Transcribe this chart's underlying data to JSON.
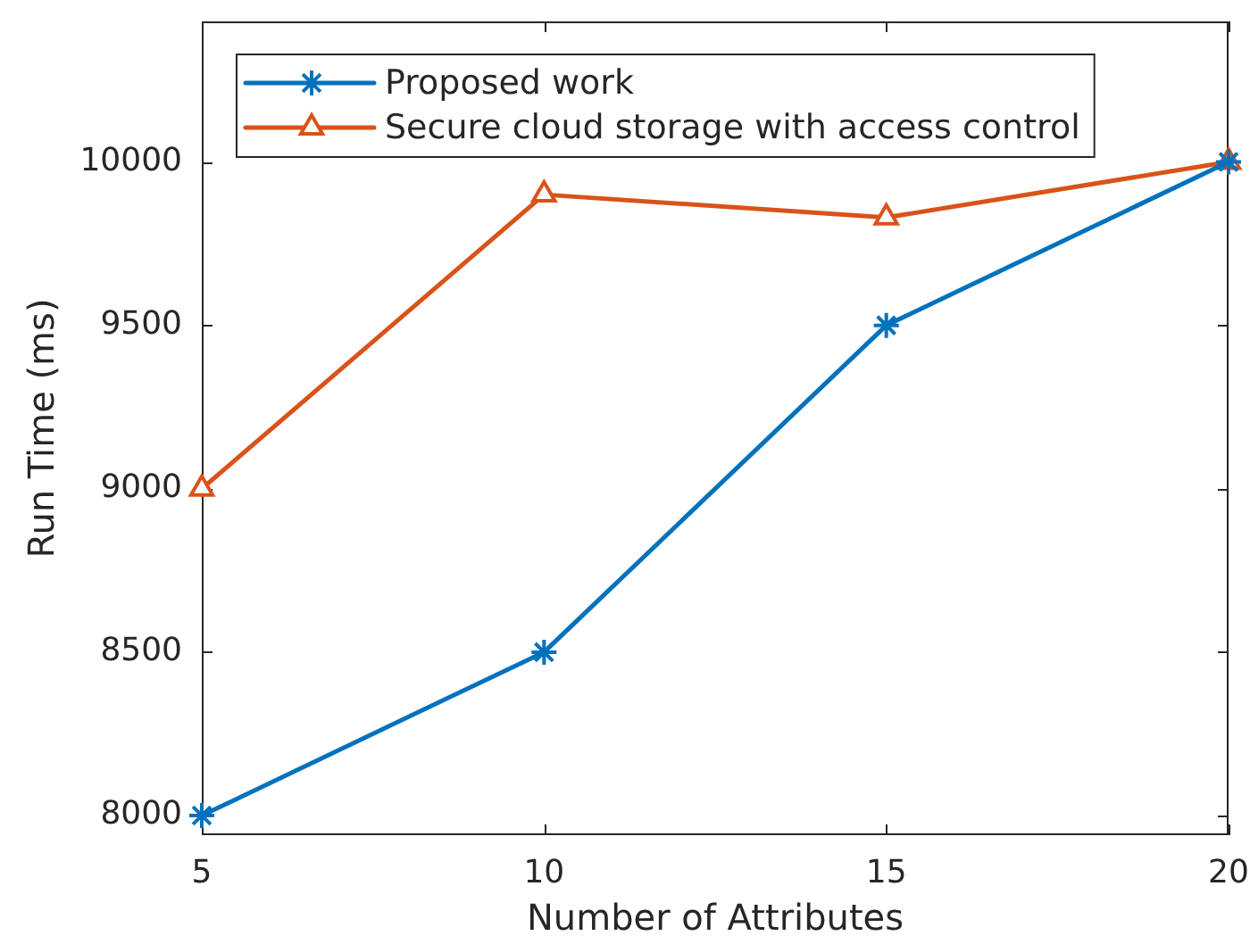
{
  "chart_data": {
    "type": "line",
    "xlabel": "Number of Attributes",
    "ylabel": "Run Time (ms)",
    "x": [
      5,
      10,
      15,
      20
    ],
    "series": [
      {
        "name": "Proposed work",
        "color": "#0072bd",
        "marker": "cross",
        "values": [
          8000,
          8500,
          9500,
          10000
        ]
      },
      {
        "name": "Secure cloud storage with access control",
        "color": "#d95319",
        "marker": "triangle",
        "values": [
          9000,
          9900,
          9830,
          10000
        ]
      }
    ],
    "xlim": [
      5,
      20
    ],
    "xticks": [
      5,
      10,
      15,
      20
    ],
    "ylim": [
      7940,
      10430
    ],
    "yticks": [
      8000,
      8500,
      9000,
      9500,
      10000
    ],
    "grid": false,
    "legend": "top left",
    "line_style": "solid"
  }
}
